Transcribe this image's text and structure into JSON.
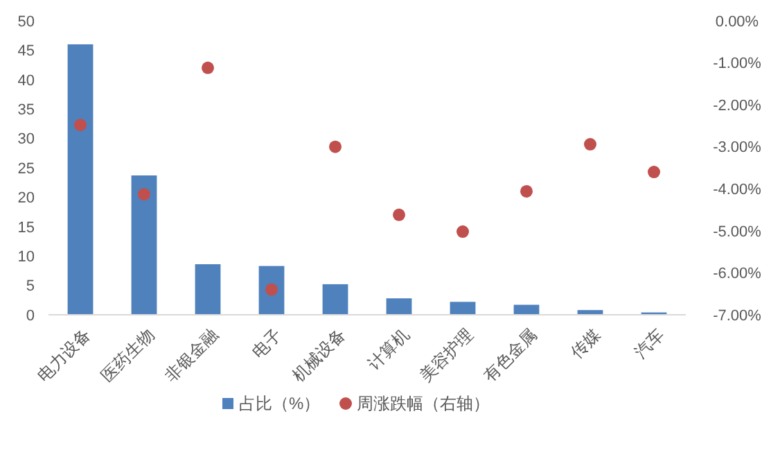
{
  "chart_data": {
    "type": "bar",
    "categories": [
      "电力设备",
      "医药生物",
      "非银金融",
      "电子",
      "机械设备",
      "计算机",
      "美容护理",
      "有色金属",
      "传媒",
      "汽车"
    ],
    "series": [
      {
        "name": "占比（%）",
        "color": "#4f81bd",
        "values": [
          46,
          23.7,
          8.6,
          8.3,
          5.2,
          2.8,
          2.2,
          1.7,
          0.8,
          0.4
        ]
      },
      {
        "name": "周涨跌幅（右轴）",
        "type": "scatter",
        "axis": "y2",
        "color": "#c0504d",
        "values": [
          -2.48,
          -4.13,
          -1.12,
          -6.4,
          -3.0,
          -4.62,
          -5.02,
          -4.06,
          -2.94,
          -3.6
        ]
      }
    ],
    "ylim": [
      0,
      50
    ],
    "yticks": [
      0,
      5,
      10,
      15,
      20,
      25,
      30,
      35,
      40,
      45,
      50
    ],
    "y2lim": [
      -7,
      0
    ],
    "y2ticks": [
      {
        "value": -7,
        "label": "-7.00%"
      },
      {
        "value": -6,
        "label": "-6.00%"
      },
      {
        "value": -5,
        "label": "-5.00%"
      },
      {
        "value": -4,
        "label": "-4.00%"
      },
      {
        "value": -3,
        "label": "-3.00%"
      },
      {
        "value": -2,
        "label": "-2.00%"
      },
      {
        "value": -1,
        "label": "-1.00%"
      },
      {
        "value": 0,
        "label": "0.00%"
      }
    ],
    "marker": "circle",
    "legend": "bottom",
    "grid": false
  }
}
